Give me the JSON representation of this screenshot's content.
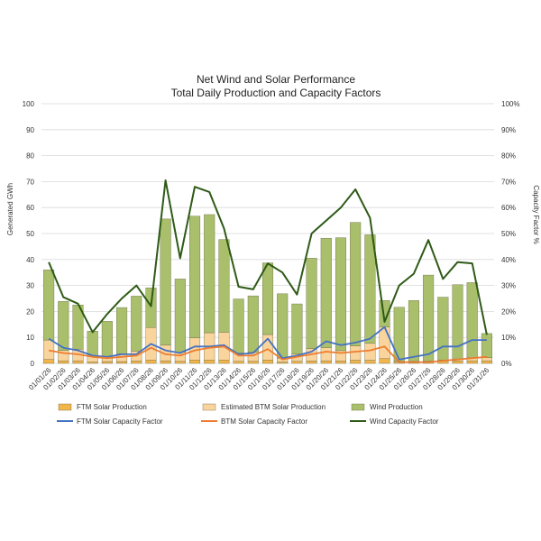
{
  "chart_data": {
    "type": "bar",
    "title": "Net Wind and Solar Performance",
    "subtitle": "Total Daily Production and Capacity Factors",
    "ylabel": "Generated GWh",
    "y2label": "Capacity Factor %",
    "ylim": [
      0,
      100
    ],
    "y2lim": [
      0,
      100
    ],
    "yticks": [
      "0",
      "10",
      "20",
      "30",
      "40",
      "50",
      "60",
      "70",
      "80",
      "90",
      "100"
    ],
    "y2ticks": [
      "0%",
      "10%",
      "20%",
      "30%",
      "40%",
      "50%",
      "60%",
      "70%",
      "80%",
      "90%",
      "100%"
    ],
    "categories": [
      "01/01/26",
      "01/02/26",
      "01/03/26",
      "01/04/26",
      "01/05/26",
      "01/06/26",
      "01/07/26",
      "01/08/26",
      "01/09/26",
      "01/10/26",
      "01/11/26",
      "01/12/26",
      "01/13/26",
      "01/14/26",
      "01/15/26",
      "01/16/26",
      "01/17/26",
      "01/18/26",
      "01/19/26",
      "01/20/26",
      "01/21/26",
      "01/22/26",
      "01/23/26",
      "01/24/26",
      "01/25/26",
      "01/26/26",
      "01/27/26",
      "01/28/26",
      "01/29/26",
      "01/30/26",
      "01/31/26"
    ],
    "stacked_series": [
      {
        "name": "FTM Solar Production",
        "color": "#f2b54a",
        "values": [
          1.5,
          1.0,
          1.0,
          0.5,
          0.7,
          0.7,
          0.9,
          1.3,
          1.0,
          0.8,
          1.3,
          1.3,
          1.3,
          0.8,
          0.8,
          1.3,
          0.5,
          0.8,
          0.9,
          1.0,
          0.9,
          1.2,
          1.2,
          1.8,
          0.4,
          0.4,
          0.5,
          0.9,
          0.9,
          1.0,
          1.0
        ]
      },
      {
        "name": "Estimated BTM Solar Production",
        "color": "#f9d49c",
        "values": [
          7.5,
          4.0,
          4.5,
          2.2,
          2.0,
          3.0,
          3.8,
          12.5,
          6.0,
          3.5,
          8.5,
          10.5,
          10.7,
          3.2,
          3.5,
          9.8,
          1.5,
          2.8,
          4.8,
          5.0,
          4.0,
          5.5,
          6.5,
          12.2,
          0.4,
          0.4,
          0.4,
          0.4,
          0.8,
          1.2,
          1.2
        ]
      },
      {
        "name": "Wind Production",
        "color": "#a9bf6b",
        "values": [
          27,
          18.9,
          17.0,
          9.7,
          13.5,
          17.8,
          21.2,
          15.3,
          48.6,
          28.2,
          46.9,
          45.5,
          35.7,
          20.8,
          21.7,
          27.6,
          24.8,
          19.3,
          34.8,
          42.2,
          43.5,
          47.6,
          41.8,
          10.2,
          20.8,
          23.4,
          33.1,
          24.2,
          28.6,
          28.9,
          9.3
        ]
      }
    ],
    "line_series": [
      {
        "name": "FTM Solar Capacity Factor",
        "color": "#4472c4",
        "values": [
          9.5,
          6.0,
          5.0,
          3.0,
          2.5,
          3.5,
          3.5,
          7.5,
          5.0,
          4.0,
          6.5,
          6.5,
          7.0,
          3.5,
          4.0,
          9.5,
          2.0,
          3.0,
          4.5,
          8.5,
          7.0,
          8.0,
          9.5,
          14.0,
          1.5,
          2.5,
          3.5,
          6.5,
          6.5,
          9.0,
          9.0
        ]
      },
      {
        "name": "BTM Solar Capacity Factor",
        "color": "#ed7d31",
        "values": [
          5.0,
          4.0,
          3.5,
          2.5,
          2.0,
          2.5,
          3.0,
          6.0,
          3.5,
          3.0,
          5.0,
          6.0,
          6.5,
          3.0,
          3.0,
          5.5,
          1.5,
          2.5,
          3.5,
          4.5,
          4.0,
          4.5,
          5.0,
          6.5,
          0.5,
          0.5,
          0.5,
          1.0,
          1.5,
          2.0,
          2.5
        ]
      },
      {
        "name": "Wind Capacity Factor",
        "color": "#2e5a16",
        "values": [
          39,
          25.5,
          23,
          12,
          19,
          25,
          30,
          22,
          70.5,
          40.5,
          68,
          66,
          52,
          29.5,
          28.5,
          38.5,
          35,
          26.5,
          50,
          55,
          60,
          67,
          56,
          16,
          30,
          34.5,
          47.5,
          32.5,
          39,
          38.5,
          11
        ]
      }
    ],
    "legend": [
      "FTM Solar Production",
      "Estimated BTM Solar Production",
      "Wind Production",
      "FTM Solar Capacity Factor",
      "BTM Solar Capacity Factor",
      "Wind Capacity Factor"
    ],
    "legend_position": "bottom"
  }
}
